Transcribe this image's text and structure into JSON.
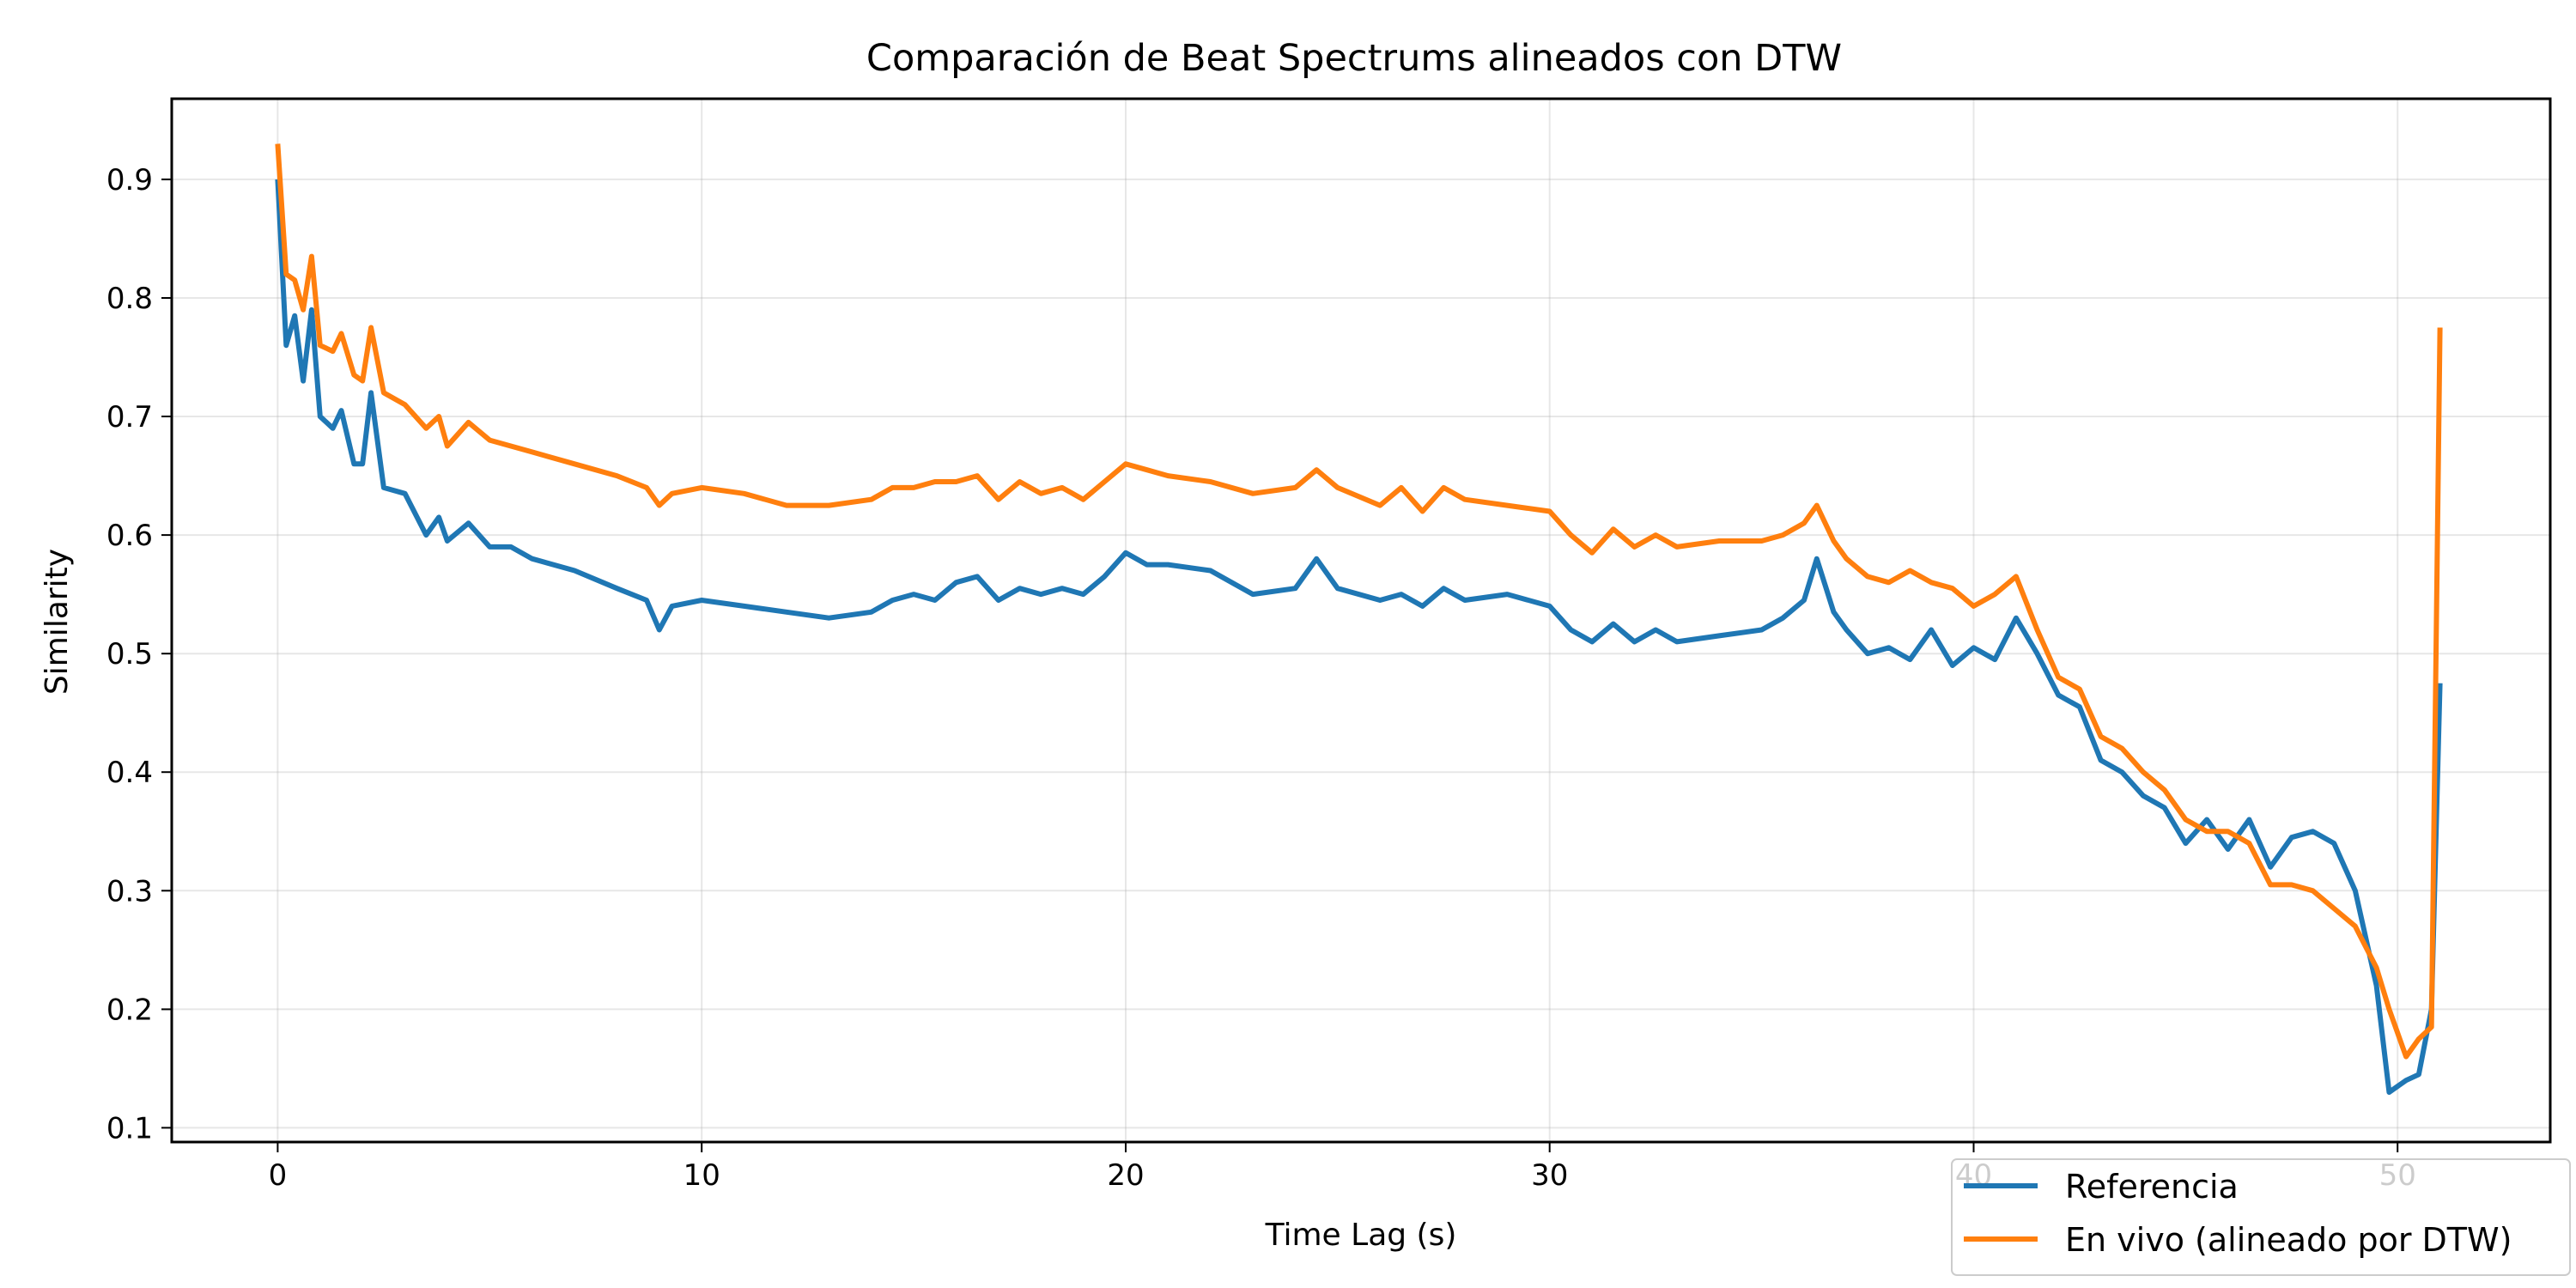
{
  "chart_data": {
    "type": "line",
    "title": "Comparación de Beat Spectrums alineados con DTW",
    "xlabel": "Time Lag (s)",
    "ylabel": "Similarity",
    "xlim": [
      -2.5,
      53.6
    ],
    "ylim": [
      0.088,
      0.968
    ],
    "xticks": [
      0,
      10,
      20,
      30,
      40,
      50
    ],
    "xtick_labels": [
      "0",
      "10",
      "20",
      "30",
      "40",
      "50"
    ],
    "yticks": [
      0.1,
      0.2,
      0.3,
      0.4,
      0.5,
      0.6,
      0.7,
      0.8,
      0.9
    ],
    "ytick_labels": [
      "0.1",
      "0.2",
      "0.3",
      "0.4",
      "0.5",
      "0.6",
      "0.7",
      "0.8",
      "0.9"
    ],
    "grid": true,
    "legend_position": "bottom-right",
    "series": [
      {
        "name": "Referencia",
        "color": "#1f77b4",
        "x": [
          0,
          0.2,
          0.4,
          0.6,
          0.8,
          1.0,
          1.3,
          1.5,
          1.8,
          2.0,
          2.2,
          2.5,
          3.0,
          3.5,
          3.8,
          4.0,
          4.5,
          5.0,
          5.5,
          6.0,
          7.0,
          8.0,
          8.7,
          9.0,
          9.3,
          10.0,
          11.0,
          12.0,
          13.0,
          14.0,
          14.5,
          15.0,
          15.5,
          16.0,
          16.5,
          17.0,
          17.5,
          18.0,
          18.5,
          19.0,
          19.5,
          20.0,
          20.5,
          21.0,
          22.0,
          23.0,
          24.0,
          24.5,
          25.0,
          26.0,
          26.5,
          27.0,
          27.5,
          28.0,
          29.0,
          30.0,
          30.5,
          31.0,
          31.5,
          32.0,
          32.5,
          33.0,
          34.0,
          35.0,
          35.5,
          36.0,
          36.3,
          36.7,
          37.0,
          37.5,
          38.0,
          38.5,
          39.0,
          39.5,
          40.0,
          40.5,
          41.0,
          41.5,
          42.0,
          42.5,
          43.0,
          43.5,
          44.0,
          44.5,
          45.0,
          45.5,
          46.0,
          46.5,
          47.0,
          47.5,
          48.0,
          48.5,
          49.0,
          49.5,
          49.8,
          50.2,
          50.5,
          50.8,
          51.0
        ],
        "y": [
          0.9,
          0.76,
          0.785,
          0.73,
          0.79,
          0.7,
          0.69,
          0.705,
          0.66,
          0.66,
          0.72,
          0.64,
          0.635,
          0.6,
          0.615,
          0.595,
          0.61,
          0.59,
          0.59,
          0.58,
          0.57,
          0.555,
          0.545,
          0.52,
          0.54,
          0.545,
          0.54,
          0.535,
          0.53,
          0.535,
          0.545,
          0.55,
          0.545,
          0.56,
          0.565,
          0.545,
          0.555,
          0.55,
          0.555,
          0.55,
          0.565,
          0.585,
          0.575,
          0.575,
          0.57,
          0.55,
          0.555,
          0.58,
          0.555,
          0.545,
          0.55,
          0.54,
          0.555,
          0.545,
          0.55,
          0.54,
          0.52,
          0.51,
          0.525,
          0.51,
          0.52,
          0.51,
          0.515,
          0.52,
          0.53,
          0.545,
          0.58,
          0.535,
          0.52,
          0.5,
          0.505,
          0.495,
          0.52,
          0.49,
          0.505,
          0.495,
          0.53,
          0.5,
          0.465,
          0.455,
          0.41,
          0.4,
          0.38,
          0.37,
          0.34,
          0.36,
          0.335,
          0.36,
          0.32,
          0.345,
          0.35,
          0.34,
          0.3,
          0.22,
          0.13,
          0.14,
          0.145,
          0.2,
          0.475
        ]
      },
      {
        "name": "En vivo (alineado por DTW)",
        "color": "#ff7f0e",
        "x": [
          0,
          0.2,
          0.4,
          0.6,
          0.8,
          1.0,
          1.3,
          1.5,
          1.8,
          2.0,
          2.2,
          2.5,
          3.0,
          3.5,
          3.8,
          4.0,
          4.5,
          5.0,
          5.5,
          6.0,
          7.0,
          8.0,
          8.7,
          9.0,
          9.3,
          10.0,
          11.0,
          12.0,
          13.0,
          14.0,
          14.5,
          15.0,
          15.5,
          16.0,
          16.5,
          17.0,
          17.5,
          18.0,
          18.5,
          19.0,
          19.5,
          20.0,
          20.5,
          21.0,
          22.0,
          23.0,
          24.0,
          24.5,
          25.0,
          26.0,
          26.5,
          27.0,
          27.5,
          28.0,
          29.0,
          30.0,
          30.5,
          31.0,
          31.5,
          32.0,
          32.5,
          33.0,
          34.0,
          35.0,
          35.5,
          36.0,
          36.3,
          36.7,
          37.0,
          37.5,
          38.0,
          38.5,
          39.0,
          39.5,
          40.0,
          40.5,
          41.0,
          41.5,
          42.0,
          42.5,
          43.0,
          43.5,
          44.0,
          44.5,
          45.0,
          45.5,
          46.0,
          46.5,
          47.0,
          47.5,
          48.0,
          48.5,
          49.0,
          49.5,
          49.8,
          50.2,
          50.5,
          50.8,
          51.0
        ],
        "y": [
          0.93,
          0.82,
          0.815,
          0.79,
          0.835,
          0.76,
          0.755,
          0.77,
          0.735,
          0.73,
          0.775,
          0.72,
          0.71,
          0.69,
          0.7,
          0.675,
          0.695,
          0.68,
          0.675,
          0.67,
          0.66,
          0.65,
          0.64,
          0.625,
          0.635,
          0.64,
          0.635,
          0.625,
          0.625,
          0.63,
          0.64,
          0.64,
          0.645,
          0.645,
          0.65,
          0.63,
          0.645,
          0.635,
          0.64,
          0.63,
          0.645,
          0.66,
          0.655,
          0.65,
          0.645,
          0.635,
          0.64,
          0.655,
          0.64,
          0.625,
          0.64,
          0.62,
          0.64,
          0.63,
          0.625,
          0.62,
          0.6,
          0.585,
          0.605,
          0.59,
          0.6,
          0.59,
          0.595,
          0.595,
          0.6,
          0.61,
          0.625,
          0.595,
          0.58,
          0.565,
          0.56,
          0.57,
          0.56,
          0.555,
          0.54,
          0.55,
          0.565,
          0.52,
          0.48,
          0.47,
          0.43,
          0.42,
          0.4,
          0.385,
          0.36,
          0.35,
          0.35,
          0.34,
          0.305,
          0.305,
          0.3,
          0.285,
          0.27,
          0.235,
          0.2,
          0.16,
          0.175,
          0.185,
          0.775
        ]
      }
    ]
  }
}
